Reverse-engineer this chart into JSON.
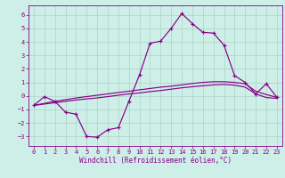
{
  "xlabel": "Windchill (Refroidissement éolien,°C)",
  "xlim": [
    -0.5,
    23.5
  ],
  "ylim": [
    -3.7,
    6.7
  ],
  "yticks": [
    -3,
    -2,
    -1,
    0,
    1,
    2,
    3,
    4,
    5,
    6
  ],
  "xticks": [
    0,
    1,
    2,
    3,
    4,
    5,
    6,
    7,
    8,
    9,
    10,
    11,
    12,
    13,
    14,
    15,
    16,
    17,
    18,
    19,
    20,
    21,
    22,
    23
  ],
  "background_color": "#ceeee8",
  "grid_color": "#b0d8cc",
  "line_color": "#880088",
  "line1_x": [
    0,
    1,
    2,
    3,
    4,
    5,
    6,
    7,
    8,
    9,
    10,
    11,
    12,
    13,
    14,
    15,
    16,
    17,
    18,
    19,
    20,
    21,
    22,
    23
  ],
  "line1_y": [
    -0.7,
    -0.05,
    -0.4,
    -1.2,
    -1.35,
    -3.0,
    -3.05,
    -2.5,
    -2.35,
    -0.4,
    1.55,
    3.9,
    4.05,
    5.0,
    6.1,
    5.35,
    4.7,
    4.65,
    3.75,
    1.5,
    1.0,
    0.15,
    0.9,
    -0.1
  ],
  "line2_x": [
    0,
    1,
    2,
    3,
    4,
    5,
    6,
    7,
    8,
    9,
    10,
    11,
    12,
    13,
    14,
    15,
    16,
    17,
    18,
    19,
    20,
    21,
    22,
    23
  ],
  "line2_y": [
    -0.7,
    -0.55,
    -0.4,
    -0.28,
    -0.15,
    -0.05,
    0.05,
    0.15,
    0.25,
    0.35,
    0.45,
    0.55,
    0.65,
    0.72,
    0.82,
    0.92,
    1.0,
    1.05,
    1.05,
    1.0,
    0.9,
    0.35,
    0.1,
    -0.1
  ],
  "line3_x": [
    0,
    1,
    2,
    3,
    4,
    5,
    6,
    7,
    8,
    9,
    10,
    11,
    12,
    13,
    14,
    15,
    16,
    17,
    18,
    19,
    20,
    21,
    22,
    23
  ],
  "line3_y": [
    -0.7,
    -0.6,
    -0.5,
    -0.4,
    -0.3,
    -0.22,
    -0.15,
    -0.05,
    0.05,
    0.15,
    0.22,
    0.32,
    0.4,
    0.5,
    0.6,
    0.68,
    0.75,
    0.82,
    0.85,
    0.8,
    0.65,
    0.15,
    -0.12,
    -0.18
  ]
}
